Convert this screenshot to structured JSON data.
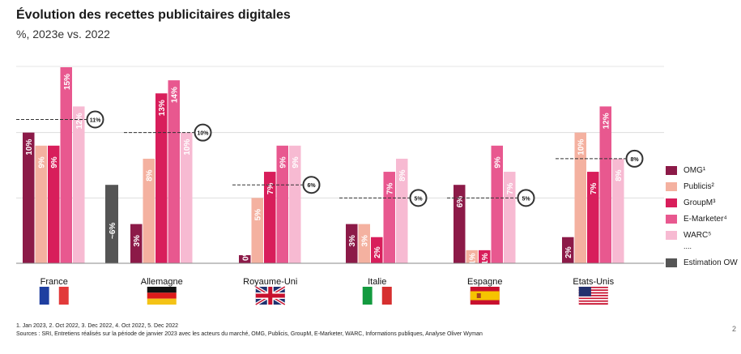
{
  "header": {
    "title": "Évolution des recettes publicitaires digitales",
    "subtitle": "%, 2023e vs. 2022"
  },
  "legend": {
    "items": [
      {
        "label": "OMG¹",
        "color": "#8c1a48"
      },
      {
        "label": "Publicis²",
        "color": "#f4b1a0"
      },
      {
        "label": "GroupM³",
        "color": "#d81e5b"
      },
      {
        "label": "E-Marketer⁴",
        "color": "#e8588f"
      },
      {
        "label": "WARC⁵",
        "color": "#f7bad2"
      }
    ],
    "dots": "....",
    "estimation_label": "Estimation OW",
    "estimation_color": "#555555"
  },
  "footnotes": {
    "line1": "1. Jan 2023, 2. Oct 2022, 3. Dec 2022, 4. Oct 2022, 5. Dec 2022",
    "line2": "Sources : SRI, Entretiens réalisés sur la période de janvier 2023 avec les acteurs du marché, OMG, Publicis, GroupM, E-Marketer, WARC, Informations publiques, Analyse Oliver Wyman"
  },
  "page_number": "2",
  "chart_data": {
    "type": "bar",
    "categories": [
      "France",
      "Allemagne",
      "Royaume-Uni",
      "Italie",
      "Espagne",
      "Etats-Unis"
    ],
    "series": [
      {
        "name": "OMG¹",
        "values": [
          10,
          3,
          0,
          3,
          6,
          2
        ],
        "labels": [
          "10%",
          "3%",
          "0%",
          "3%",
          "6%",
          "2%"
        ]
      },
      {
        "name": "Publicis²",
        "values": [
          9,
          8,
          5,
          3,
          1,
          10
        ],
        "labels": [
          "9%",
          "8%",
          "5%",
          "3%",
          "1%",
          "10%"
        ]
      },
      {
        "name": "GroupM³",
        "values": [
          9,
          13,
          7,
          2,
          1,
          7
        ],
        "labels": [
          "9%",
          "13%",
          "7%",
          "2%",
          "1%",
          "7%"
        ]
      },
      {
        "name": "E-Marketer⁴",
        "values": [
          15,
          14,
          9,
          7,
          9,
          12
        ],
        "labels": [
          "15%",
          "14%",
          "9%",
          "7%",
          "9%",
          "12%"
        ]
      },
      {
        "name": "WARC⁵",
        "values": [
          12,
          10,
          9,
          8,
          7,
          8
        ],
        "labels": [
          "12%",
          "10%",
          "9%",
          "8%",
          "7%",
          "8%"
        ]
      }
    ],
    "estimation": {
      "name": "Estimation OW",
      "values": [
        11,
        10,
        6,
        5,
        5,
        8
      ],
      "labels": [
        "11%",
        "10%",
        "6%",
        "5%",
        "5%",
        "8%"
      ],
      "france_extra_bar_label": "~6%",
      "france_extra_bar_value": 6
    },
    "flags": [
      "france",
      "germany",
      "uk",
      "italy",
      "spain",
      "usa"
    ],
    "ylim": [
      0,
      15
    ]
  }
}
